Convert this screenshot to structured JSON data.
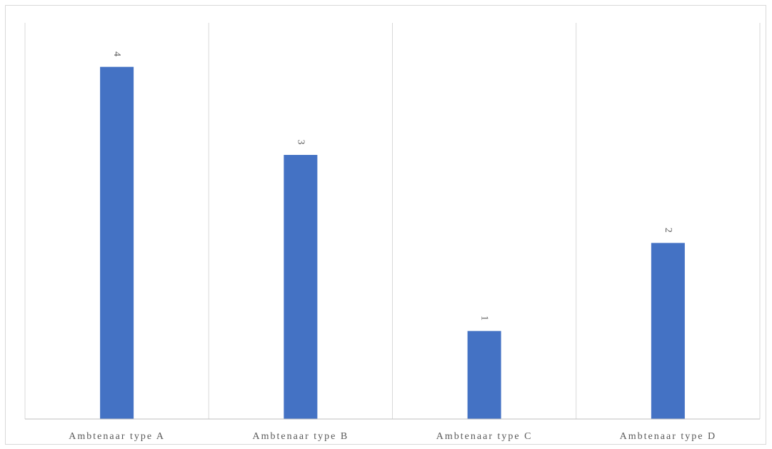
{
  "chart_data": {
    "type": "bar",
    "categories": [
      "Ambtenaar type A",
      "Ambtenaar type B",
      "Ambtenaar type C",
      "Ambtenaar type D"
    ],
    "values": [
      4,
      3,
      1,
      2
    ],
    "data_labels": [
      "4",
      "3",
      "1",
      "2"
    ],
    "title": "",
    "xlabel": "",
    "ylabel": "",
    "ylim": [
      0,
      4.5
    ],
    "grid": "vertical category separators",
    "legend": "none",
    "data_label_orientation": "rotated 90 degrees",
    "colors": {
      "bar": "#4472C4",
      "grid": "#d9d9d9",
      "axis": "#bfbfbf",
      "text": "#595959"
    }
  }
}
